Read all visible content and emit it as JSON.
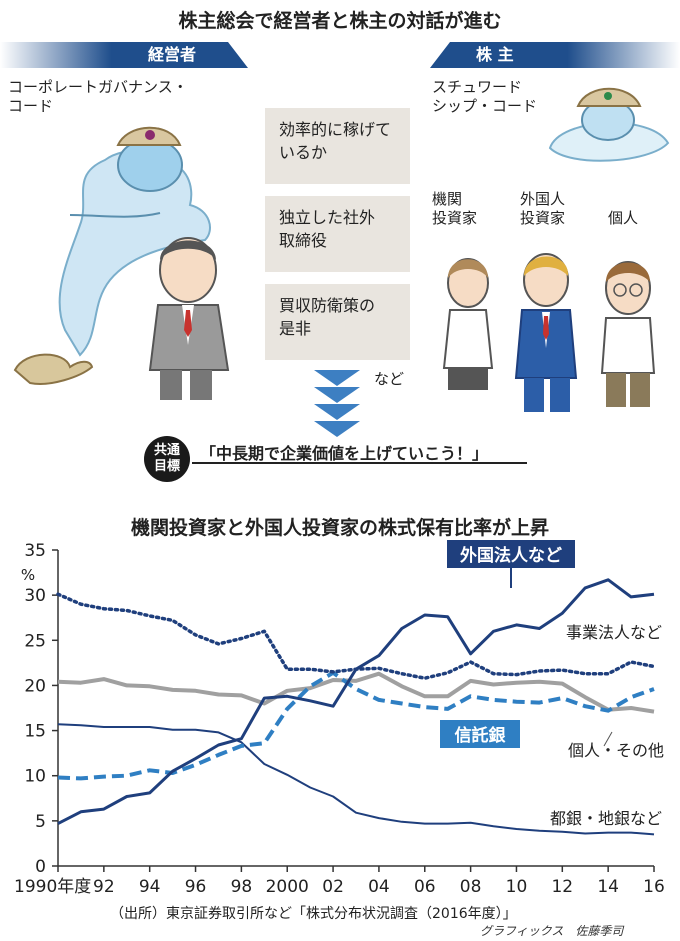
{
  "header": {
    "title": "株主総会で経営者と株主の対話が進む"
  },
  "illustration": {
    "left_banner": "経営者",
    "right_banner": "株 主",
    "left_caption_1": "コーポレートガバナンス・",
    "left_caption_2": "コード",
    "right_caption_1": "スチュワード",
    "right_caption_2": "シップ・コード",
    "topics": [
      {
        "line1": "効率的に稼げて",
        "line2": "いるか"
      },
      {
        "line1": "独立した社外",
        "line2": "取締役"
      },
      {
        "line1": "買収防衛策の",
        "line2": "是非"
      }
    ],
    "topics_more": "など",
    "shareholders": [
      {
        "line1": "機関",
        "line2": "投資家"
      },
      {
        "line1": "外国人",
        "line2": "投資家"
      },
      {
        "line1": "個人",
        "line2": ""
      }
    ],
    "goal_badge_1": "共通",
    "goal_badge_2": "目標",
    "goal_text": "「中長期で企業価値を上げていこう！」"
  },
  "colors": {
    "navy": "#1f3f7d",
    "mid_blue": "#2f7fc3",
    "gray": "#a0a0a0",
    "panel": "#e9e5df",
    "banner": "#1f4e8c"
  },
  "chart_data": {
    "type": "line",
    "title": "機関投資家と外国人投資家の株式保有比率が上昇",
    "ylabel": "%",
    "ylim": [
      0,
      35
    ],
    "xlim": [
      1990,
      2016
    ],
    "yticks": [
      "0",
      "5",
      "10",
      "15",
      "20",
      "25",
      "30",
      "35"
    ],
    "xticks": [
      {
        "x": 1990,
        "label": "1990年度"
      },
      {
        "x": 1992,
        "label": "92"
      },
      {
        "x": 1994,
        "label": "94"
      },
      {
        "x": 1996,
        "label": "96"
      },
      {
        "x": 1998,
        "label": "98"
      },
      {
        "x": 2000,
        "label": "2000"
      },
      {
        "x": 2002,
        "label": "02"
      },
      {
        "x": 2004,
        "label": "04"
      },
      {
        "x": 2006,
        "label": "06"
      },
      {
        "x": 2008,
        "label": "08"
      },
      {
        "x": 2010,
        "label": "10"
      },
      {
        "x": 2012,
        "label": "12"
      },
      {
        "x": 2014,
        "label": "14"
      },
      {
        "x": 2016,
        "label": "16"
      }
    ],
    "x": [
      1990,
      1991,
      1992,
      1993,
      1994,
      1995,
      1996,
      1997,
      1998,
      1999,
      2000,
      2001,
      2002,
      2003,
      2004,
      2005,
      2006,
      2007,
      2008,
      2009,
      2010,
      2011,
      2012,
      2013,
      2014,
      2015,
      2016
    ],
    "series": [
      {
        "name": "外国法人など",
        "color": "#1f3f7d",
        "style": "solid",
        "width": 3,
        "values": [
          4.7,
          6.0,
          6.3,
          7.7,
          8.1,
          10.5,
          11.9,
          13.4,
          14.1,
          18.6,
          18.8,
          18.3,
          17.7,
          21.8,
          23.3,
          26.3,
          27.8,
          27.6,
          23.5,
          26.0,
          26.7,
          26.3,
          28.0,
          30.8,
          31.7,
          29.8,
          30.1
        ]
      },
      {
        "name": "事業法人など",
        "color": "#1f3f7d",
        "style": "dotted",
        "width": 3.5,
        "values": [
          30.1,
          29.0,
          28.5,
          28.3,
          27.7,
          27.2,
          25.6,
          24.6,
          25.2,
          26.0,
          21.8,
          21.8,
          21.5,
          21.8,
          21.9,
          21.3,
          20.8,
          21.4,
          22.6,
          21.3,
          21.2,
          21.6,
          21.7,
          21.3,
          21.3,
          22.6,
          22.1
        ]
      },
      {
        "name": "個人・その他",
        "color": "#a0a0a0",
        "style": "solid",
        "width": 4,
        "values": [
          20.4,
          20.3,
          20.7,
          20.0,
          19.9,
          19.5,
          19.4,
          19.0,
          18.9,
          18.0,
          19.4,
          19.7,
          20.6,
          20.5,
          21.3,
          19.9,
          18.8,
          18.8,
          20.5,
          20.1,
          20.3,
          20.4,
          20.2,
          18.7,
          17.3,
          17.5,
          17.1
        ]
      },
      {
        "name": "信託銀",
        "color": "#2f7fc3",
        "style": "dashed",
        "width": 4,
        "values": [
          9.8,
          9.7,
          9.9,
          10.0,
          10.6,
          10.3,
          11.2,
          12.3,
          13.3,
          13.6,
          17.4,
          19.9,
          21.4,
          19.6,
          18.4,
          18.0,
          17.6,
          17.4,
          18.8,
          18.4,
          18.2,
          18.1,
          18.6,
          17.7,
          17.2,
          18.7,
          19.6
        ]
      },
      {
        "name": "都銀・地銀など",
        "color": "#1f3f7d",
        "style": "solid",
        "width": 2,
        "values": [
          15.7,
          15.6,
          15.4,
          15.4,
          15.4,
          15.1,
          15.1,
          14.8,
          13.7,
          11.3,
          10.1,
          8.7,
          7.7,
          5.9,
          5.3,
          4.9,
          4.7,
          4.7,
          4.8,
          4.4,
          4.1,
          3.9,
          3.8,
          3.6,
          3.7,
          3.7,
          3.5
        ]
      }
    ]
  },
  "source_note": "（出所）東京証券取引所など「株式分布状況調査（2016年度）」",
  "credit": "グラフィックス　佐藤季司"
}
